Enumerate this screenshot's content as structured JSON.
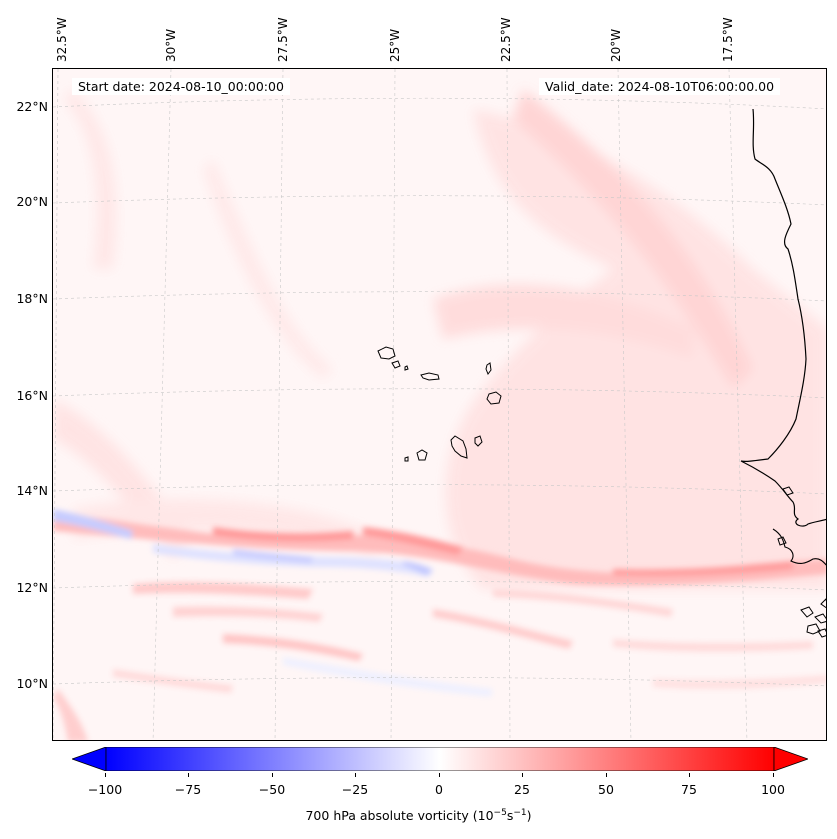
{
  "map": {
    "start_date": "Start date: 2024-08-10_00:00:00",
    "valid_date": "Valid_date: 2024-08-10T06:00:00.00",
    "lon_labels": [
      "32.5°W",
      "30°W",
      "27.5°W",
      "25°W",
      "22.5°W",
      "20°W",
      "17.5°W"
    ],
    "lat_labels": [
      "22°N",
      "20°N",
      "18°N",
      "16°N",
      "14°N",
      "12°N",
      "10°N"
    ],
    "lon_range": [
      -33.2,
      -15.8
    ],
    "lat_range": [
      8.9,
      22.8
    ],
    "field": "700 hPa absolute vorticity",
    "features": [
      "Cape Verde islands",
      "West African coastline"
    ]
  },
  "colorbar": {
    "label": "700 hPa absolute vorticity (10",
    "label_exp": "−5",
    "label_unit": "s",
    "label_exp2": "−1",
    "label_close": ")",
    "ticks": [
      "−100",
      "−75",
      "−50",
      "−25",
      "0",
      "25",
      "50",
      "75",
      "100"
    ],
    "range": [
      -100,
      100
    ],
    "colormap": "bwr",
    "extend": "both",
    "colors": {
      "low": "#0000ff",
      "mid": "#ffffff",
      "high": "#ff0000"
    }
  }
}
